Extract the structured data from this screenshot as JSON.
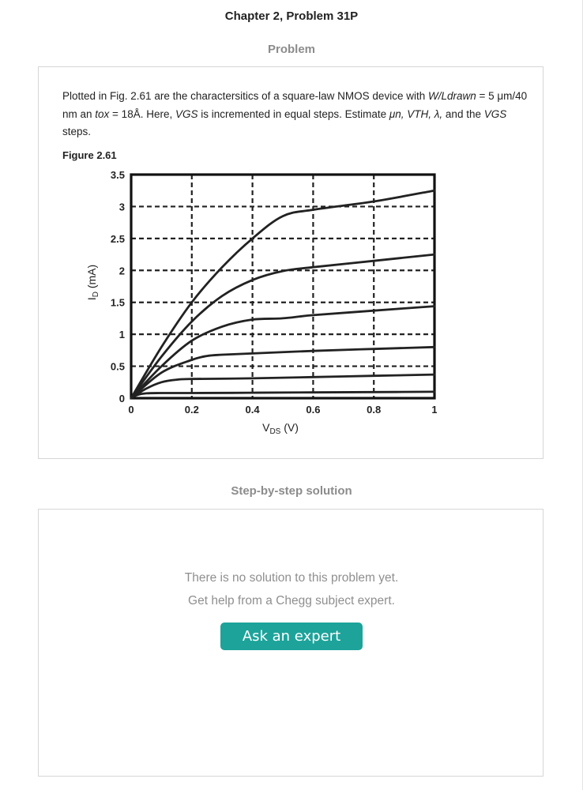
{
  "page": {
    "title": "Chapter 2, Problem 31P"
  },
  "problem": {
    "heading": "Problem",
    "text": {
      "t1": "Plotted in Fig. 2.61 are the charactersitics of a square-law NMOS device with ",
      "w_l_drawn": "W/Ldrawn",
      "t2": " = 5 μm/40 nm an ",
      "tox": "tox",
      "t3": " = 18Å. Here, ",
      "vgs": "VGS",
      "t4": " is incremented in equal steps. Estimate ",
      "estimates": "μn, VTH, λ,",
      "t5": " and the ",
      "vgs2": "VGS",
      "t6": " steps."
    },
    "figure_label": "Figure 2.61"
  },
  "chart_data": {
    "type": "line",
    "xlabel": "V",
    "xlabel_sub": "DS",
    "xlabel_unit": " (V)",
    "ylabel": "I",
    "ylabel_sub": "D",
    "ylabel_unit": " (mA)",
    "xlim": [
      0,
      1
    ],
    "ylim": [
      0,
      3.5
    ],
    "x_ticks": [
      0,
      0.2,
      0.4,
      0.6,
      0.8,
      1
    ],
    "x_tick_labels": [
      "0",
      "0.2",
      "0.4",
      "0.6",
      "0.8",
      "1"
    ],
    "y_ticks": [
      0,
      0.5,
      1,
      1.5,
      2,
      2.5,
      3,
      3.5
    ],
    "y_tick_labels": [
      "0",
      "0.5",
      "1",
      "1.5",
      "2",
      "2.5",
      "3",
      "3.5"
    ],
    "grid": true,
    "series": [
      {
        "x": [
          0,
          0.02,
          0.05,
          0.1,
          0.2,
          0.4,
          0.6,
          0.8,
          1.0
        ],
        "values": [
          0,
          0.05,
          0.075,
          0.08,
          0.08,
          0.085,
          0.09,
          0.095,
          0.1
        ]
      },
      {
        "x": [
          0,
          0.05,
          0.1,
          0.15,
          0.2,
          0.4,
          0.6,
          0.8,
          1.0
        ],
        "values": [
          0,
          0.15,
          0.25,
          0.29,
          0.3,
          0.31,
          0.33,
          0.35,
          0.37
        ]
      },
      {
        "x": [
          0,
          0.1,
          0.2,
          0.25,
          0.3,
          0.4,
          0.6,
          0.8,
          1.0
        ],
        "values": [
          0,
          0.4,
          0.6,
          0.66,
          0.68,
          0.7,
          0.74,
          0.77,
          0.8
        ]
      },
      {
        "x": [
          0,
          0.1,
          0.2,
          0.3,
          0.4,
          0.5,
          0.6,
          0.8,
          1.0
        ],
        "values": [
          0,
          0.5,
          0.9,
          1.12,
          1.23,
          1.25,
          1.3,
          1.37,
          1.44
        ]
      },
      {
        "x": [
          0,
          0.1,
          0.2,
          0.3,
          0.4,
          0.5,
          0.6,
          0.8,
          1.0
        ],
        "values": [
          0,
          0.65,
          1.2,
          1.6,
          1.85,
          1.99,
          2.05,
          2.15,
          2.25
        ]
      },
      {
        "x": [
          0,
          0.1,
          0.2,
          0.3,
          0.4,
          0.5,
          0.6,
          0.8,
          1.0
        ],
        "values": [
          0,
          0.8,
          1.5,
          2.05,
          2.5,
          2.85,
          2.95,
          3.08,
          3.25
        ]
      }
    ]
  },
  "solution": {
    "heading": "Step-by-step solution",
    "no_solution_line1": "There is no solution to this problem yet.",
    "no_solution_line2": "Get help from a Chegg subject expert.",
    "ask_button_label": "Ask an expert",
    "ask_button_color": "#1da39a"
  }
}
